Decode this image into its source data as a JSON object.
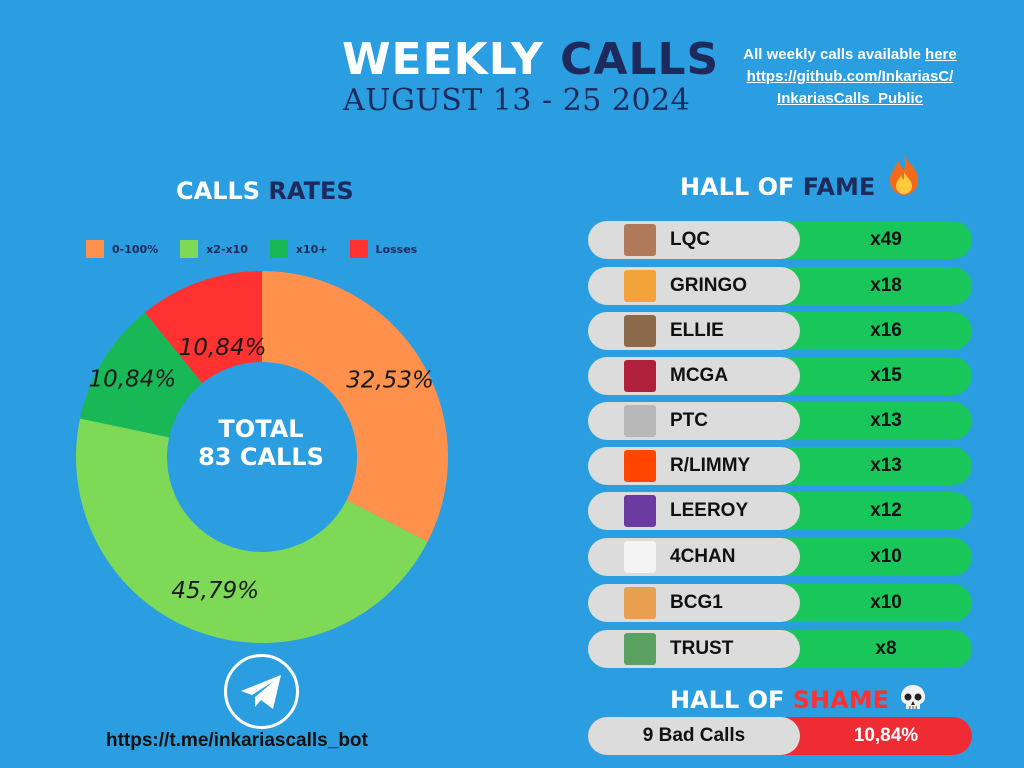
{
  "header": {
    "title_white": "WEEKLY",
    "title_dark": "CALLS",
    "subtitle": "AUGUST 13 - 25 2024"
  },
  "repo": {
    "line1_text": "All weekly calls available ",
    "line1_link": "here",
    "line2": "https://github.com/InkariasC/",
    "line3": "InkariasCalls_Public"
  },
  "calls_rates": {
    "title_white": "CALLS",
    "title_dark": "RATES"
  },
  "colors": {
    "background": "#2a9ee0",
    "dark": "#1f2a5c",
    "orange": "#ff914d",
    "light_green": "#7ed957",
    "green": "#18b857",
    "red": "#ff3131"
  },
  "chart_data": {
    "type": "pie",
    "style": "donut",
    "categories": [
      "0-100%",
      "x2-x10",
      "x10+",
      "Losses"
    ],
    "values": [
      32.53,
      45.79,
      10.84,
      10.84
    ],
    "labels": [
      "32,53%",
      "45,79%",
      "10,84%",
      "10,84%"
    ],
    "colors": [
      "#ff914d",
      "#7ed957",
      "#18b857",
      "#ff3131"
    ],
    "center_line1": "TOTAL",
    "center_line2": "83 CALLS",
    "legend_position": "top"
  },
  "telegram": {
    "icon": "telegram-icon",
    "url": "https://t.me/inkariascalls_bot"
  },
  "hall_of_fame": {
    "title_white": "HALL OF",
    "title_dark": "FAME",
    "icon": "fire-icon",
    "rows": [
      {
        "name": "LQC",
        "mult": "x49",
        "avatar_color": "#b07a5a"
      },
      {
        "name": "GRINGO",
        "mult": "x18",
        "avatar_color": "#f2a33a"
      },
      {
        "name": "ELLIE",
        "mult": "x16",
        "avatar_color": "#8a6a4a"
      },
      {
        "name": "MCGA",
        "mult": "x15",
        "avatar_color": "#b0203a"
      },
      {
        "name": "PTC",
        "mult": "x13",
        "avatar_color": "#b8b8b8"
      },
      {
        "name": "R/LIMMY",
        "mult": "x13",
        "avatar_color": "#ff4500"
      },
      {
        "name": "LEEROY",
        "mult": "x12",
        "avatar_color": "#6a3aa0"
      },
      {
        "name": "4CHAN",
        "mult": "x10",
        "avatar_color": "#f4f4f4"
      },
      {
        "name": "BCG1",
        "mult": "x10",
        "avatar_color": "#e8a050"
      },
      {
        "name": "TRUST",
        "mult": "x8",
        "avatar_color": "#5aa060"
      }
    ]
  },
  "hall_of_shame": {
    "title_white": "HALL OF",
    "title_red": "SHAME",
    "icon": "skull-icon",
    "bad_calls": "9 Bad Calls",
    "pct": "10,84%"
  }
}
